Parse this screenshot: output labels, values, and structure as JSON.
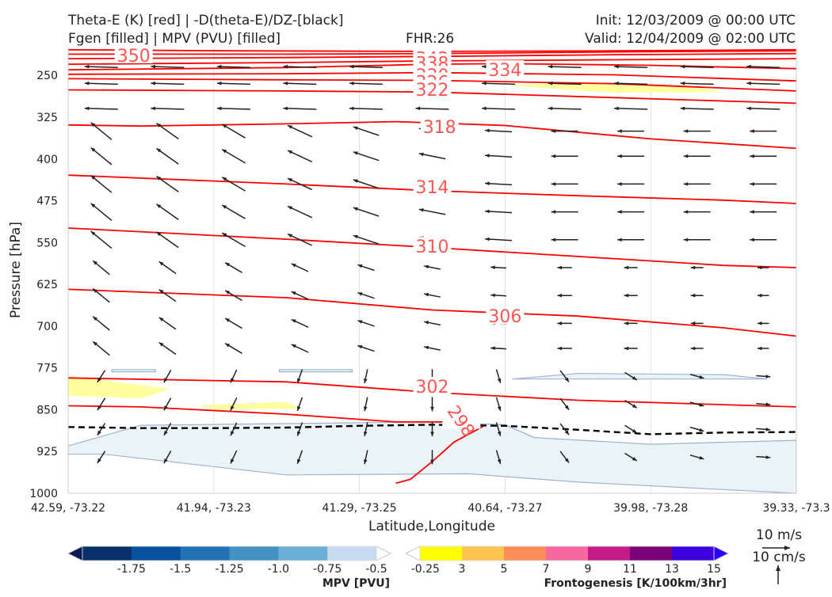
{
  "titles": {
    "left_line1": "Theta-E (K) [red] | -D(theta-E)/DZ-[black]",
    "left_line2": "Fgen [filled] | MPV (PVU) [filled]",
    "center": "FHR:26",
    "right_line1": "Init: 12/03/2009 @ 00:00 UTC",
    "right_line2": "Valid: 12/04/2009 @ 02:00 UTC"
  },
  "chart_data": {
    "type": "cross-section",
    "xlabel": "Latitude,Longitude",
    "ylabel": "Pressure [hPa]",
    "ylim": [
      1000,
      200
    ],
    "x_ticks": [
      "42.59, -73.22",
      "41.94, -73.23",
      "41.29, -73.25",
      "40.64, -73.27",
      "39.98, -73.28",
      "39.33, -73.3"
    ],
    "y_ticks": [
      "250",
      "325",
      "400",
      "475",
      "550",
      "625",
      "700",
      "775",
      "850",
      "925",
      "1000"
    ],
    "y_tick_values": [
      250,
      325,
      400,
      475,
      550,
      625,
      700,
      775,
      850,
      925,
      1000
    ],
    "theta_e_contours": [
      {
        "label": "350",
        "points": [
          [
            0,
            204
          ],
          [
            0.22,
            206
          ],
          [
            0.5,
            207
          ],
          [
            0.75,
            206
          ],
          [
            1,
            204
          ]
        ]
      },
      {
        "label": "346",
        "points": [
          [
            0,
            212
          ],
          [
            0.3,
            212
          ],
          [
            0.5,
            211
          ],
          [
            0.75,
            208
          ],
          [
            1,
            206
          ]
        ]
      },
      {
        "label": "342",
        "points": [
          [
            0,
            220
          ],
          [
            0.3,
            218
          ],
          [
            0.5,
            216
          ],
          [
            0.75,
            213
          ],
          [
            1,
            211
          ]
        ]
      },
      {
        "label": "338",
        "points": [
          [
            0,
            230
          ],
          [
            0.3,
            227
          ],
          [
            0.5,
            224
          ],
          [
            0.75,
            222
          ],
          [
            1,
            220
          ]
        ]
      },
      {
        "label": "334",
        "points": [
          [
            0,
            240
          ],
          [
            0.3,
            236
          ],
          [
            0.5,
            230
          ],
          [
            0.6,
            229
          ],
          [
            0.8,
            232
          ],
          [
            1,
            238
          ]
        ]
      },
      {
        "label": "330",
        "points": [
          [
            0,
            248
          ],
          [
            0.3,
            247
          ],
          [
            0.5,
            245
          ],
          [
            0.75,
            249
          ],
          [
            1,
            260
          ]
        ]
      },
      {
        "label": "326",
        "points": [
          [
            0,
            256
          ],
          [
            0.3,
            258
          ],
          [
            0.5,
            259
          ],
          [
            0.75,
            265
          ],
          [
            1,
            278
          ]
        ]
      },
      {
        "label": "322",
        "points": [
          [
            0,
            276
          ],
          [
            0.3,
            278
          ],
          [
            0.5,
            280
          ],
          [
            0.75,
            290
          ],
          [
            1,
            300
          ]
        ]
      },
      {
        "label": "318",
        "points": [
          [
            0,
            339
          ],
          [
            0.1,
            341
          ],
          [
            0.3,
            337
          ],
          [
            0.45,
            333
          ],
          [
            0.6,
            340
          ],
          [
            0.8,
            364
          ],
          [
            1,
            381
          ]
        ]
      },
      {
        "label": "314",
        "points": [
          [
            0,
            429
          ],
          [
            0.3,
            445
          ],
          [
            0.5,
            457
          ],
          [
            0.7,
            466
          ],
          [
            0.9,
            474
          ],
          [
            1,
            480
          ]
        ]
      },
      {
        "label": "310",
        "points": [
          [
            0,
            524
          ],
          [
            0.3,
            544
          ],
          [
            0.5,
            559
          ],
          [
            0.7,
            575
          ],
          [
            0.9,
            591
          ],
          [
            1,
            595
          ]
        ]
      },
      {
        "label": "306",
        "points": [
          [
            0,
            634
          ],
          [
            0.3,
            649
          ],
          [
            0.5,
            671
          ],
          [
            0.7,
            682
          ],
          [
            0.9,
            703
          ],
          [
            1,
            718
          ]
        ]
      },
      {
        "label": "302",
        "points": [
          [
            0,
            793
          ],
          [
            0.3,
            800
          ],
          [
            0.5,
            819
          ],
          [
            0.7,
            833
          ],
          [
            0.9,
            841
          ],
          [
            1,
            845
          ]
        ]
      },
      {
        "label": "298",
        "points": [
          [
            0,
            843
          ],
          [
            0.1,
            845
          ],
          [
            0.3,
            858
          ],
          [
            0.45,
            872
          ],
          [
            0.54,
            872
          ]
        ]
      }
    ],
    "theta_e_segment_298": {
      "label": "298",
      "points": [
        [
          0.45,
          982
        ],
        [
          0.47,
          975
        ],
        [
          0.5,
          943
        ],
        [
          0.53,
          908
        ],
        [
          0.57,
          880
        ]
      ]
    },
    "dthetae_dz_contour": {
      "points": [
        [
          0,
          881
        ],
        [
          0.1,
          883
        ],
        [
          0.2,
          883
        ],
        [
          0.3,
          882
        ],
        [
          0.4,
          879
        ],
        [
          0.5,
          877
        ],
        [
          0.6,
          879
        ],
        [
          0.7,
          886
        ],
        [
          0.8,
          894
        ],
        [
          0.9,
          891
        ],
        [
          1,
          890
        ]
      ]
    },
    "mpv_filled": [
      {
        "value": -0.25,
        "points": [
          [
            0,
            915
          ],
          [
            0.1,
            878
          ],
          [
            0.5,
            872
          ],
          [
            0.6,
            877
          ],
          [
            0.64,
            900
          ],
          [
            0.8,
            912
          ],
          [
            1,
            905
          ],
          [
            1,
            1000
          ],
          [
            0.7,
            980
          ],
          [
            0.55,
            965
          ],
          [
            0.3,
            967
          ],
          [
            0.05,
            930
          ],
          [
            0,
            930
          ]
        ]
      },
      {
        "value": -0.25,
        "points": [
          [
            0.06,
            778
          ],
          [
            0.12,
            778
          ],
          [
            0.12,
            782
          ],
          [
            0.06,
            782
          ]
        ]
      },
      {
        "value": -0.25,
        "points": [
          [
            0.29,
            778
          ],
          [
            0.39,
            778
          ],
          [
            0.39,
            782
          ],
          [
            0.29,
            782
          ]
        ]
      },
      {
        "value": -0.25,
        "points": [
          [
            0.61,
            795
          ],
          [
            0.7,
            785
          ],
          [
            0.9,
            787
          ],
          [
            0.96,
            795
          ],
          [
            0.61,
            795
          ]
        ]
      }
    ],
    "fgen_filled": [
      {
        "value": 3,
        "points": [
          [
            0.6,
            268
          ],
          [
            0.7,
            262
          ],
          [
            0.85,
            268
          ],
          [
            0.9,
            280
          ],
          [
            0.75,
            281
          ],
          [
            0.6,
            268
          ]
        ]
      },
      {
        "value": 3,
        "points": [
          [
            0,
            790
          ],
          [
            0.14,
            812
          ],
          [
            0.1,
            830
          ],
          [
            0,
            825
          ]
        ]
      },
      {
        "value": 3,
        "points": [
          [
            0.18,
            842
          ],
          [
            0.3,
            836
          ],
          [
            0.32,
            848
          ],
          [
            0.2,
            850
          ],
          [
            0.18,
            842
          ]
        ]
      }
    ],
    "wind_vectors": {
      "reference_labels": [
        "10 m/s",
        "10 cm/s"
      ]
    },
    "colorbars": [
      {
        "title": "MPV [PVU]",
        "ticks": [
          "-1.75",
          "-1.5",
          "-1.25",
          "-1.0",
          "-0.75",
          "-0.5",
          "-0.25"
        ],
        "colors": [
          "#081d58",
          "#08306b",
          "#08519c",
          "#2171b5",
          "#4292c6",
          "#6baed6",
          "#c6dbef",
          "#ffffff"
        ]
      },
      {
        "title": "Frontogenesis [K/100km/3hr]",
        "ticks": [
          "3",
          "5",
          "7",
          "9",
          "11",
          "13",
          "15"
        ],
        "colors": [
          "#ffffff",
          "#ffff00",
          "#fec44f",
          "#fc8d59",
          "#f768a1",
          "#c51b8a",
          "#7a0177",
          "#3d00e0",
          "#2b00ff"
        ]
      }
    ]
  },
  "colors": {
    "theta_e": "#ff0000",
    "dthetae": "#000000",
    "mpv_fill": "#eaf4f7",
    "fgen_fill": "#ffffa0",
    "contour_label": "#ff5555"
  }
}
